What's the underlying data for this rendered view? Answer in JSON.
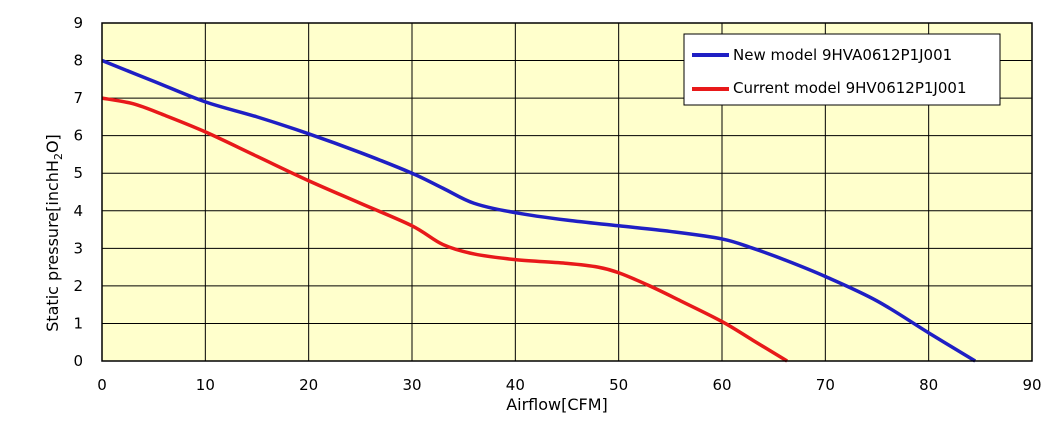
{
  "chart_data": {
    "type": "line",
    "xlabel": "Airflow[CFM]",
    "ylabel_main": "Static pressure[inchH",
    "ylabel_sub": "2",
    "ylabel_tail": "O]",
    "xlim": [
      0,
      90
    ],
    "ylim": [
      0,
      9
    ],
    "x_ticks": [
      0,
      10,
      20,
      30,
      40,
      50,
      60,
      70,
      80,
      90
    ],
    "y_ticks": [
      0,
      1,
      2,
      3,
      4,
      5,
      6,
      7,
      8,
      9
    ],
    "grid": true,
    "plot_background": "#ffffcc",
    "legend_position": "top-right",
    "series": [
      {
        "name": "New model 9HVA0612P1J001",
        "color": "#1f1fc4",
        "points": [
          [
            0,
            8.0
          ],
          [
            5,
            7.45
          ],
          [
            10,
            6.9
          ],
          [
            15,
            6.5
          ],
          [
            20,
            6.05
          ],
          [
            25,
            5.55
          ],
          [
            30,
            5.0
          ],
          [
            33,
            4.6
          ],
          [
            36,
            4.2
          ],
          [
            40,
            3.95
          ],
          [
            45,
            3.75
          ],
          [
            50,
            3.6
          ],
          [
            55,
            3.45
          ],
          [
            60,
            3.25
          ],
          [
            63,
            3.0
          ],
          [
            66,
            2.7
          ],
          [
            70,
            2.25
          ],
          [
            75,
            1.6
          ],
          [
            80,
            0.75
          ],
          [
            84.5,
            0.0
          ]
        ]
      },
      {
        "name": "Current model 9HV0612P1J001",
        "color": "#e8191a",
        "points": [
          [
            0,
            7.0
          ],
          [
            3,
            6.85
          ],
          [
            6,
            6.55
          ],
          [
            10,
            6.1
          ],
          [
            15,
            5.45
          ],
          [
            20,
            4.8
          ],
          [
            25,
            4.2
          ],
          [
            30,
            3.6
          ],
          [
            33,
            3.1
          ],
          [
            36,
            2.85
          ],
          [
            40,
            2.7
          ],
          [
            45,
            2.6
          ],
          [
            48,
            2.5
          ],
          [
            50,
            2.35
          ],
          [
            53,
            2.0
          ],
          [
            56,
            1.6
          ],
          [
            60,
            1.05
          ],
          [
            63,
            0.55
          ],
          [
            66.3,
            0.0
          ]
        ]
      }
    ]
  }
}
